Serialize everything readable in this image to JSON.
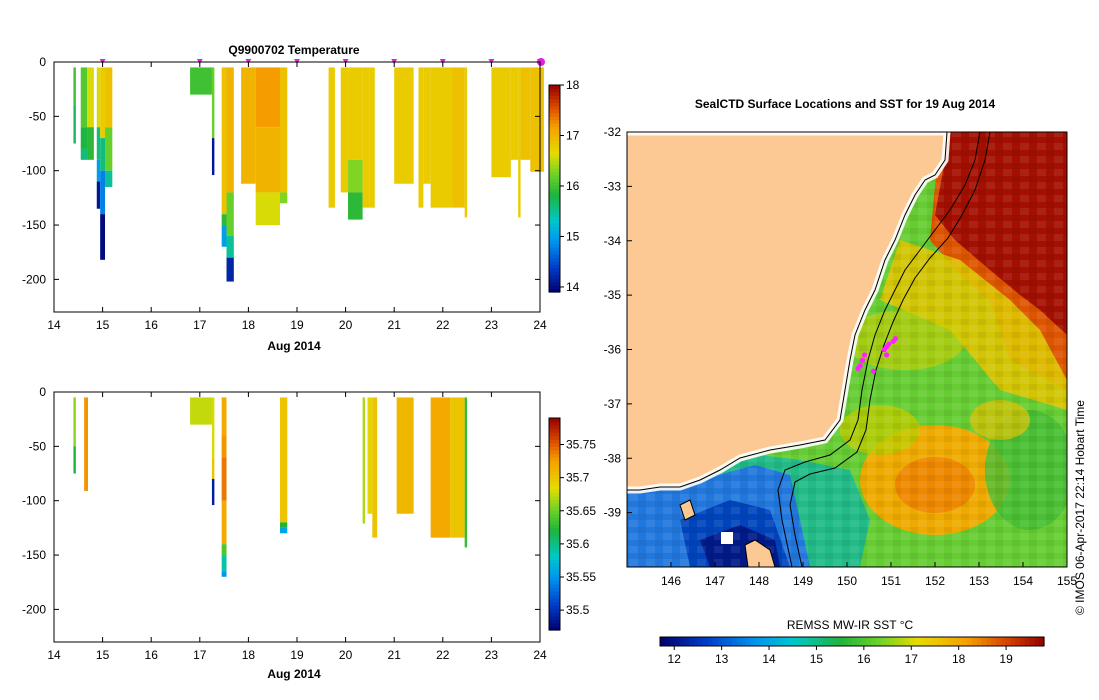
{
  "chart_data": [
    {
      "type": "heatmap",
      "id": "temperature-section",
      "title": "Q9900702  Temperature",
      "xlabel": "Aug 2014",
      "xlim": [
        14,
        24
      ],
      "ylim": [
        -230,
        0
      ],
      "x_ticks": [
        14,
        15,
        16,
        17,
        18,
        19,
        20,
        21,
        22,
        23,
        24
      ],
      "y_ticks": [
        0,
        -50,
        -100,
        -150,
        -200
      ],
      "colorbar": {
        "min": 13.9,
        "max": 18,
        "ticks": [
          18,
          17,
          16,
          15,
          14
        ]
      },
      "markers": [
        15,
        17,
        18,
        19,
        20,
        21,
        22,
        23,
        24
      ],
      "profiles": [
        {
          "x0": 14.4,
          "x1": 14.45,
          "segs": [
            [
              -5,
              -40,
              16.0
            ],
            [
              -40,
              -75,
              15.7
            ]
          ]
        },
        {
          "x0": 14.55,
          "x1": 14.68,
          "segs": [
            [
              -5,
              -60,
              16.1
            ],
            [
              -60,
              -80,
              15.8
            ],
            [
              -80,
              -90,
              15.6
            ]
          ]
        },
        {
          "x0": 14.68,
          "x1": 14.82,
          "segs": [
            [
              -5,
              -60,
              16.6
            ],
            [
              -60,
              -90,
              15.9
            ]
          ]
        },
        {
          "x0": 14.88,
          "x1": 14.95,
          "segs": [
            [
              -5,
              -60,
              16.6
            ],
            [
              -60,
              -90,
              15.6
            ],
            [
              -90,
              -110,
              15.0
            ],
            [
              -110,
              -135,
              14.1
            ]
          ]
        },
        {
          "x0": 14.95,
          "x1": 15.05,
          "segs": [
            [
              -5,
              -70,
              16.8
            ],
            [
              -70,
              -100,
              15.6
            ],
            [
              -100,
              -140,
              14.8
            ],
            [
              -140,
              -182,
              14.0
            ]
          ]
        },
        {
          "x0": 15.05,
          "x1": 15.2,
          "segs": [
            [
              -5,
              -60,
              16.9
            ],
            [
              -60,
              -100,
              16.2
            ],
            [
              -100,
              -115,
              15.5
            ]
          ]
        },
        {
          "x0": 16.8,
          "x1": 17.25,
          "segs": [
            [
              -5,
              -30,
              16.0
            ]
          ]
        },
        {
          "x0": 17.25,
          "x1": 17.3,
          "segs": [
            [
              -5,
              -70,
              16.2
            ],
            [
              -70,
              -104,
              14.1
            ]
          ]
        },
        {
          "x0": 17.45,
          "x1": 17.55,
          "segs": [
            [
              -5,
              -140,
              16.9
            ],
            [
              -140,
              -150,
              15.9
            ],
            [
              -150,
              -170,
              15.0
            ]
          ]
        },
        {
          "x0": 17.55,
          "x1": 17.7,
          "segs": [
            [
              -5,
              -120,
              17.0
            ],
            [
              -120,
              -160,
              16.2
            ],
            [
              -160,
              -180,
              15.5
            ],
            [
              -180,
              -202,
              14.2
            ]
          ]
        },
        {
          "x0": 17.85,
          "x1": 18.15,
          "segs": [
            [
              -5,
              -112,
              17.0
            ]
          ]
        },
        {
          "x0": 18.15,
          "x1": 18.65,
          "segs": [
            [
              -5,
              -60,
              17.2
            ],
            [
              -60,
              -120,
              17.0
            ],
            [
              -120,
              -150,
              16.6
            ]
          ]
        },
        {
          "x0": 18.65,
          "x1": 18.8,
          "segs": [
            [
              -5,
              -120,
              16.9
            ],
            [
              -120,
              -130,
              16.3
            ]
          ]
        },
        {
          "x0": 19.65,
          "x1": 19.78,
          "segs": [
            [
              -5,
              -134,
              16.8
            ]
          ]
        },
        {
          "x0": 19.9,
          "x1": 20.05,
          "segs": [
            [
              -5,
              -120,
              16.8
            ]
          ]
        },
        {
          "x0": 20.05,
          "x1": 20.35,
          "segs": [
            [
              -5,
              -90,
              16.8
            ],
            [
              -90,
              -120,
              16.3
            ],
            [
              -120,
              -145,
              15.9
            ]
          ]
        },
        {
          "x0": 20.35,
          "x1": 20.5,
          "segs": [
            [
              -5,
              -134,
              16.8
            ]
          ]
        },
        {
          "x0": 20.5,
          "x1": 20.6,
          "segs": [
            [
              -5,
              -134,
              16.8
            ]
          ]
        },
        {
          "x0": 21.0,
          "x1": 21.4,
          "segs": [
            [
              -5,
              -112,
              16.8
            ]
          ]
        },
        {
          "x0": 21.5,
          "x1": 21.6,
          "segs": [
            [
              -5,
              -134,
              16.8
            ]
          ]
        },
        {
          "x0": 21.6,
          "x1": 21.75,
          "segs": [
            [
              -5,
              -112,
              16.8
            ]
          ]
        },
        {
          "x0": 21.75,
          "x1": 22.2,
          "segs": [
            [
              -5,
              -134,
              16.8
            ]
          ]
        },
        {
          "x0": 22.2,
          "x1": 22.45,
          "segs": [
            [
              -5,
              -134,
              16.9
            ]
          ]
        },
        {
          "x0": 22.45,
          "x1": 22.5,
          "segs": [
            [
              -5,
              -143,
              16.8
            ]
          ]
        },
        {
          "x0": 23.0,
          "x1": 23.4,
          "segs": [
            [
              -5,
              -106,
              16.8
            ]
          ]
        },
        {
          "x0": 23.4,
          "x1": 23.55,
          "segs": [
            [
              -5,
              -90,
              16.8
            ]
          ]
        },
        {
          "x0": 23.55,
          "x1": 23.6,
          "segs": [
            [
              -5,
              -143,
              16.8
            ]
          ]
        },
        {
          "x0": 23.6,
          "x1": 23.8,
          "segs": [
            [
              -5,
              -90,
              16.9
            ]
          ]
        },
        {
          "x0": 23.8,
          "x1": 24.08,
          "segs": [
            [
              -5,
              -101,
              16.9
            ]
          ]
        }
      ]
    },
    {
      "type": "heatmap",
      "id": "salinity-section",
      "title": "",
      "xlabel": "Aug 2014",
      "xlim": [
        14,
        24
      ],
      "ylim": [
        -230,
        0
      ],
      "x_ticks": [
        14,
        15,
        16,
        17,
        18,
        19,
        20,
        21,
        22,
        23,
        24
      ],
      "y_ticks": [
        0,
        -50,
        -100,
        -150,
        -200
      ],
      "colorbar": {
        "min": 35.47,
        "max": 35.79,
        "ticks": [
          35.75,
          35.7,
          35.65,
          35.6,
          35.55,
          35.5
        ]
      },
      "profiles": [
        {
          "x0": 14.4,
          "x1": 14.45,
          "segs": [
            [
              -5,
              -50,
              35.66
            ],
            [
              -50,
              -75,
              35.62
            ]
          ]
        },
        {
          "x0": 14.62,
          "x1": 14.7,
          "segs": [
            [
              -5,
              -91,
              35.73
            ]
          ]
        },
        {
          "x0": 16.8,
          "x1": 17.25,
          "segs": [
            [
              -5,
              -30,
              35.675
            ]
          ]
        },
        {
          "x0": 17.25,
          "x1": 17.3,
          "segs": [
            [
              -5,
              -60,
              35.68
            ],
            [
              -60,
              -80,
              35.7
            ],
            [
              -80,
              -104,
              35.49
            ]
          ]
        },
        {
          "x0": 17.45,
          "x1": 17.55,
          "segs": [
            [
              -5,
              -40,
              35.72
            ],
            [
              -40,
              -60,
              35.73
            ],
            [
              -60,
              -100,
              35.74
            ],
            [
              -100,
              -140,
              35.72
            ],
            [
              -140,
              -150,
              35.64
            ],
            [
              -150,
              -165,
              35.59
            ],
            [
              -165,
              -170,
              35.55
            ]
          ]
        },
        {
          "x0": 18.65,
          "x1": 18.8,
          "segs": [
            [
              -5,
              -120,
              35.7
            ],
            [
              -120,
              -125,
              35.62
            ],
            [
              -125,
              -130,
              35.56
            ]
          ]
        },
        {
          "x0": 20.35,
          "x1": 20.4,
          "segs": [
            [
              -5,
              -121,
              35.67
            ]
          ]
        },
        {
          "x0": 20.45,
          "x1": 20.55,
          "segs": [
            [
              -5,
              -112,
              35.69
            ]
          ]
        },
        {
          "x0": 20.55,
          "x1": 20.65,
          "segs": [
            [
              -5,
              -134,
              35.7
            ]
          ]
        },
        {
          "x0": 21.05,
          "x1": 21.4,
          "segs": [
            [
              -5,
              -112,
              35.71
            ]
          ]
        },
        {
          "x0": 21.75,
          "x1": 22.15,
          "segs": [
            [
              -5,
              -134,
              35.72
            ]
          ]
        },
        {
          "x0": 22.15,
          "x1": 22.45,
          "segs": [
            [
              -5,
              -134,
              35.7
            ]
          ]
        },
        {
          "x0": 22.45,
          "x1": 22.5,
          "segs": [
            [
              -5,
              -143,
              35.63
            ]
          ]
        }
      ]
    },
    {
      "type": "heatmap",
      "id": "sst-map",
      "title": "SealCTD Surface Locations and SST for 19 Aug 2014",
      "xlim": [
        145,
        155
      ],
      "ylim": [
        -40,
        -32
      ],
      "x_ticks": [
        146,
        147,
        148,
        149,
        150,
        151,
        152,
        153,
        154,
        155
      ],
      "y_ticks": [
        -32,
        -33,
        -34,
        -35,
        -36,
        -37,
        -38,
        -39
      ],
      "colorbar": {
        "label": "REMSS MW-IR SST °C",
        "min": 11.7,
        "max": 19.8,
        "ticks": [
          12,
          13,
          14,
          15,
          16,
          17,
          18,
          19
        ]
      },
      "stations": [
        [
          150.3,
          -36.3
        ],
        [
          150.35,
          -36.2
        ],
        [
          150.4,
          -36.1
        ],
        [
          150.85,
          -36.0
        ],
        [
          150.9,
          -35.95
        ],
        [
          150.95,
          -35.9
        ],
        [
          151.05,
          -35.85
        ],
        [
          151.1,
          -35.8
        ],
        [
          150.9,
          -36.1
        ],
        [
          150.6,
          -36.4
        ],
        [
          150.25,
          -36.35
        ]
      ],
      "credit": "© IMOS 06-Apr-2017 22:14 Hobart Time"
    }
  ]
}
